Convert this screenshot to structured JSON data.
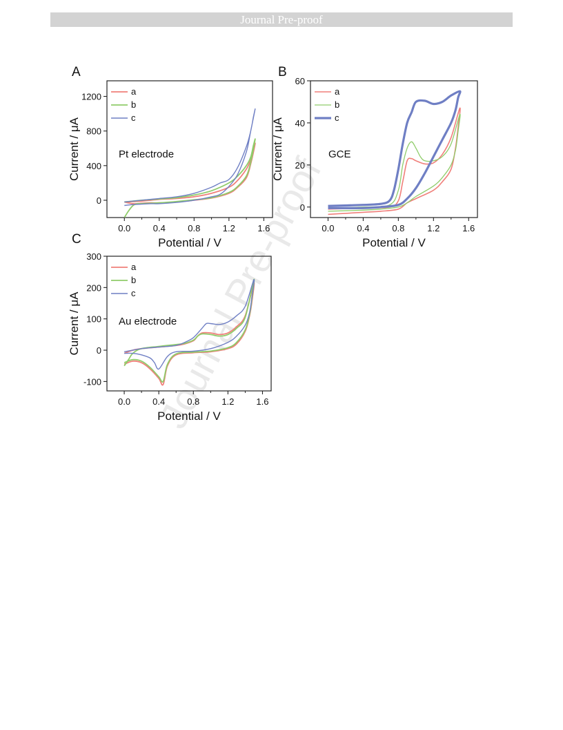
{
  "header": {
    "banner_text": "Journal Pre-proof"
  },
  "watermark": {
    "text": "Journal Pre-proof"
  },
  "chart_data": [
    {
      "panel": "A",
      "type": "line",
      "annotation": "Pt electrode",
      "xlabel": "Potential / V",
      "ylabel": "Current / μA",
      "xlim": [
        -0.2,
        1.7
      ],
      "ylim": [
        -200,
        1380
      ],
      "xticks": [
        "0.0",
        "0.4",
        "0.8",
        "1.2",
        "1.6"
      ],
      "xtick_values": [
        0.0,
        0.4,
        0.8,
        1.2,
        1.6
      ],
      "yticks": [
        "0",
        "400",
        "800",
        "1200"
      ],
      "ytick_values": [
        0,
        400,
        800,
        1200
      ],
      "legend_position": "top-left",
      "series": [
        {
          "name": "a",
          "color": "#f07f7a",
          "points": [
            [
              0.0,
              -20
            ],
            [
              0.1,
              -40
            ],
            [
              0.2,
              -35
            ],
            [
              0.3,
              -30
            ],
            [
              0.4,
              -30
            ],
            [
              0.6,
              -20
            ],
            [
              0.8,
              0
            ],
            [
              1.0,
              25
            ],
            [
              1.2,
              80
            ],
            [
              1.3,
              150
            ],
            [
              1.4,
              260
            ],
            [
              1.45,
              420
            ],
            [
              1.5,
              650
            ],
            [
              1.48,
              600
            ],
            [
              1.45,
              470
            ],
            [
              1.4,
              360
            ],
            [
              1.3,
              230
            ],
            [
              1.2,
              150
            ],
            [
              1.0,
              80
            ],
            [
              0.8,
              40
            ],
            [
              0.6,
              20
            ],
            [
              0.4,
              10
            ],
            [
              0.2,
              -10
            ],
            [
              0.0,
              -20
            ]
          ]
        },
        {
          "name": "b",
          "color": "#8fcc6a",
          "points": [
            [
              0.0,
              -200
            ],
            [
              0.05,
              -120
            ],
            [
              0.1,
              -60
            ],
            [
              0.15,
              -40
            ],
            [
              0.2,
              -40
            ],
            [
              0.4,
              -30
            ],
            [
              0.6,
              -15
            ],
            [
              0.8,
              5
            ],
            [
              1.0,
              30
            ],
            [
              1.2,
              90
            ],
            [
              1.3,
              160
            ],
            [
              1.4,
              280
            ],
            [
              1.45,
              440
            ],
            [
              1.5,
              700
            ],
            [
              1.48,
              630
            ],
            [
              1.45,
              500
            ],
            [
              1.4,
              400
            ],
            [
              1.3,
              280
            ],
            [
              1.2,
              200
            ],
            [
              1.0,
              110
            ],
            [
              0.8,
              60
            ],
            [
              0.6,
              30
            ],
            [
              0.4,
              15
            ],
            [
              0.2,
              0
            ],
            [
              0.1,
              -10
            ],
            [
              0.0,
              -20
            ]
          ]
        },
        {
          "name": "c",
          "color": "#6f7fc4",
          "points": [
            [
              0.0,
              -60
            ],
            [
              0.1,
              -50
            ],
            [
              0.2,
              -45
            ],
            [
              0.3,
              -40
            ],
            [
              0.4,
              -40
            ],
            [
              0.6,
              -25
            ],
            [
              0.8,
              0
            ],
            [
              1.0,
              40
            ],
            [
              1.1,
              70
            ],
            [
              1.2,
              160
            ],
            [
              1.3,
              300
            ],
            [
              1.4,
              560
            ],
            [
              1.45,
              800
            ],
            [
              1.5,
              1050
            ],
            [
              1.48,
              960
            ],
            [
              1.45,
              800
            ],
            [
              1.4,
              620
            ],
            [
              1.3,
              380
            ],
            [
              1.2,
              240
            ],
            [
              1.1,
              200
            ],
            [
              1.0,
              150
            ],
            [
              0.8,
              80
            ],
            [
              0.6,
              40
            ],
            [
              0.4,
              20
            ],
            [
              0.2,
              0
            ],
            [
              0.0,
              -20
            ]
          ]
        }
      ]
    },
    {
      "panel": "B",
      "type": "line",
      "annotation": "GCE",
      "xlabel": "Potential / V",
      "ylabel": "Current / μA",
      "xlim": [
        -0.2,
        1.7
      ],
      "ylim": [
        -5,
        60
      ],
      "xticks": [
        "0.0",
        "0.4",
        "0.8",
        "1.2",
        "1.6"
      ],
      "xtick_values": [
        0.0,
        0.4,
        0.8,
        1.2,
        1.6
      ],
      "yticks": [
        "0",
        "20",
        "40",
        "60"
      ],
      "ytick_values": [
        0,
        20,
        40,
        60
      ],
      "legend_position": "top-left",
      "series": [
        {
          "name": "a",
          "color": "#f07f7a",
          "points": [
            [
              0.0,
              -1
            ],
            [
              0.4,
              -0.5
            ],
            [
              0.7,
              0
            ],
            [
              0.8,
              3
            ],
            [
              0.85,
              12
            ],
            [
              0.9,
              22
            ],
            [
              0.95,
              23
            ],
            [
              1.0,
              22
            ],
            [
              1.1,
              20.5
            ],
            [
              1.2,
              21
            ],
            [
              1.3,
              25
            ],
            [
              1.4,
              33
            ],
            [
              1.5,
              47
            ],
            [
              1.48,
              38
            ],
            [
              1.45,
              28
            ],
            [
              1.4,
              18
            ],
            [
              1.3,
              12
            ],
            [
              1.2,
              8
            ],
            [
              1.0,
              4
            ],
            [
              0.9,
              2
            ],
            [
              0.8,
              -1
            ],
            [
              0.6,
              -2
            ],
            [
              0.4,
              -2.5
            ],
            [
              0.2,
              -3
            ],
            [
              0.0,
              -3.5
            ]
          ]
        },
        {
          "name": "b",
          "color": "#8fcc6a",
          "points": [
            [
              0.0,
              -0.5
            ],
            [
              0.4,
              0
            ],
            [
              0.7,
              1
            ],
            [
              0.8,
              8
            ],
            [
              0.85,
              20
            ],
            [
              0.9,
              28
            ],
            [
              0.95,
              31
            ],
            [
              1.0,
              28
            ],
            [
              1.05,
              24
            ],
            [
              1.1,
              22
            ],
            [
              1.2,
              22
            ],
            [
              1.3,
              24
            ],
            [
              1.4,
              30
            ],
            [
              1.5,
              44
            ],
            [
              1.48,
              36
            ],
            [
              1.45,
              27
            ],
            [
              1.4,
              20
            ],
            [
              1.3,
              14
            ],
            [
              1.2,
              10
            ],
            [
              1.0,
              5
            ],
            [
              0.9,
              2
            ],
            [
              0.8,
              0
            ],
            [
              0.6,
              -1
            ],
            [
              0.4,
              -1.5
            ],
            [
              0.0,
              -2
            ]
          ]
        },
        {
          "name": "c",
          "color": "#6f7fc4",
          "points": [
            [
              0.0,
              0.5
            ],
            [
              0.4,
              1
            ],
            [
              0.6,
              1.5
            ],
            [
              0.7,
              3
            ],
            [
              0.75,
              8
            ],
            [
              0.8,
              18
            ],
            [
              0.85,
              30
            ],
            [
              0.9,
              40
            ],
            [
              0.95,
              45
            ],
            [
              1.0,
              50
            ],
            [
              1.1,
              50.5
            ],
            [
              1.2,
              49
            ],
            [
              1.3,
              50
            ],
            [
              1.4,
              53
            ],
            [
              1.5,
              55
            ],
            [
              1.48,
              52
            ],
            [
              1.45,
              46
            ],
            [
              1.4,
              40
            ],
            [
              1.3,
              32
            ],
            [
              1.2,
              24
            ],
            [
              1.1,
              16
            ],
            [
              1.0,
              9
            ],
            [
              0.9,
              4
            ],
            [
              0.8,
              1
            ],
            [
              0.6,
              0
            ],
            [
              0.4,
              -0.5
            ],
            [
              0.0,
              -0.5
            ]
          ]
        }
      ]
    },
    {
      "panel": "C",
      "type": "line",
      "annotation": "Au electrode",
      "xlabel": "Potential / V",
      "ylabel": "Current / μA",
      "xlim": [
        -0.2,
        1.7
      ],
      "ylim": [
        -130,
        300
      ],
      "xticks": [
        "0.0",
        "0.4",
        "0.8",
        "1.2",
        "1.6"
      ],
      "xtick_values": [
        0.0,
        0.4,
        0.8,
        1.2,
        1.6
      ],
      "yticks": [
        "-100",
        "0",
        "100",
        "200",
        "300"
      ],
      "ytick_values": [
        -100,
        0,
        100,
        200,
        300
      ],
      "legend_position": "top-left",
      "series": [
        {
          "name": "a",
          "color": "#f07f7a",
          "points": [
            [
              0.0,
              -10
            ],
            [
              0.1,
              0
            ],
            [
              0.2,
              5
            ],
            [
              0.4,
              10
            ],
            [
              0.6,
              15
            ],
            [
              0.7,
              20
            ],
            [
              0.8,
              30
            ],
            [
              0.85,
              45
            ],
            [
              0.9,
              55
            ],
            [
              1.0,
              55
            ],
            [
              1.1,
              50
            ],
            [
              1.2,
              55
            ],
            [
              1.3,
              75
            ],
            [
              1.4,
              110
            ],
            [
              1.5,
              215
            ],
            [
              1.48,
              160
            ],
            [
              1.45,
              110
            ],
            [
              1.4,
              60
            ],
            [
              1.3,
              20
            ],
            [
              1.2,
              5
            ],
            [
              1.0,
              -5
            ],
            [
              0.8,
              -8
            ],
            [
              0.6,
              -15
            ],
            [
              0.5,
              -50
            ],
            [
              0.45,
              -110
            ],
            [
              0.4,
              -90
            ],
            [
              0.3,
              -60
            ],
            [
              0.2,
              -40
            ],
            [
              0.1,
              -35
            ],
            [
              0.0,
              -45
            ]
          ]
        },
        {
          "name": "b",
          "color": "#8fcc6a",
          "points": [
            [
              0.0,
              -50
            ],
            [
              0.05,
              -30
            ],
            [
              0.1,
              -10
            ],
            [
              0.2,
              5
            ],
            [
              0.4,
              12
            ],
            [
              0.6,
              18
            ],
            [
              0.7,
              22
            ],
            [
              0.8,
              32
            ],
            [
              0.85,
              45
            ],
            [
              0.9,
              52
            ],
            [
              1.0,
              50
            ],
            [
              1.1,
              45
            ],
            [
              1.2,
              50
            ],
            [
              1.3,
              70
            ],
            [
              1.4,
              105
            ],
            [
              1.5,
              225
            ],
            [
              1.48,
              170
            ],
            [
              1.45,
              115
            ],
            [
              1.4,
              65
            ],
            [
              1.3,
              25
            ],
            [
              1.2,
              8
            ],
            [
              1.0,
              -3
            ],
            [
              0.8,
              -6
            ],
            [
              0.6,
              -12
            ],
            [
              0.5,
              -45
            ],
            [
              0.45,
              -100
            ],
            [
              0.4,
              -85
            ],
            [
              0.3,
              -55
            ],
            [
              0.2,
              -35
            ],
            [
              0.1,
              -30
            ],
            [
              0.0,
              -40
            ]
          ]
        },
        {
          "name": "c",
          "color": "#6f7fc4",
          "points": [
            [
              0.0,
              -5
            ],
            [
              0.1,
              0
            ],
            [
              0.2,
              5
            ],
            [
              0.4,
              10
            ],
            [
              0.6,
              15
            ],
            [
              0.7,
              25
            ],
            [
              0.8,
              40
            ],
            [
              0.9,
              70
            ],
            [
              0.95,
              85
            ],
            [
              1.0,
              85
            ],
            [
              1.1,
              82
            ],
            [
              1.2,
              90
            ],
            [
              1.3,
              110
            ],
            [
              1.4,
              140
            ],
            [
              1.5,
              225
            ],
            [
              1.48,
              175
            ],
            [
              1.45,
              120
            ],
            [
              1.4,
              80
            ],
            [
              1.3,
              45
            ],
            [
              1.2,
              25
            ],
            [
              1.0,
              5
            ],
            [
              0.8,
              -3
            ],
            [
              0.6,
              -5
            ],
            [
              0.5,
              -20
            ],
            [
              0.4,
              -60
            ],
            [
              0.35,
              -40
            ],
            [
              0.3,
              -25
            ],
            [
              0.2,
              -15
            ],
            [
              0.1,
              -10
            ],
            [
              0.0,
              -10
            ]
          ]
        }
      ]
    }
  ]
}
